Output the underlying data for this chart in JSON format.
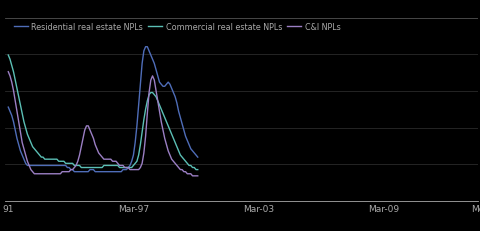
{
  "background_color": "#000000",
  "text_color": "#aaaaaa",
  "grid_color": "#2a2a2a",
  "legend_labels": [
    "Residential real estate NPLs",
    "Commercial real estate NPLs",
    "C&I NPLs"
  ],
  "line_colors": [
    "#4f6db8",
    "#5bbfb5",
    "#9b7fc4"
  ],
  "x_ticks": [
    "91",
    "Mar-97",
    "Mar-03",
    "Mar-09",
    "Me"
  ],
  "x_tick_positions": [
    0,
    72,
    144,
    216,
    270
  ],
  "series": {
    "residential": [
      0.45,
      0.43,
      0.41,
      0.38,
      0.34,
      0.3,
      0.27,
      0.24,
      0.22,
      0.2,
      0.18,
      0.17,
      0.17,
      0.17,
      0.17,
      0.17,
      0.17,
      0.17,
      0.17,
      0.17,
      0.17,
      0.17,
      0.17,
      0.17,
      0.17,
      0.17,
      0.17,
      0.17,
      0.17,
      0.17,
      0.17,
      0.17,
      0.17,
      0.17,
      0.16,
      0.16,
      0.15,
      0.15,
      0.14,
      0.14,
      0.14,
      0.14,
      0.14,
      0.14,
      0.14,
      0.14,
      0.14,
      0.15,
      0.15,
      0.15,
      0.14,
      0.14,
      0.14,
      0.14,
      0.14,
      0.14,
      0.14,
      0.14,
      0.14,
      0.14,
      0.14,
      0.14,
      0.14,
      0.14,
      0.14,
      0.14,
      0.15,
      0.15,
      0.15,
      0.16,
      0.17,
      0.19,
      0.22,
      0.28,
      0.36,
      0.46,
      0.56,
      0.66,
      0.72,
      0.74,
      0.74,
      0.72,
      0.7,
      0.68,
      0.66,
      0.63,
      0.6,
      0.57,
      0.56,
      0.55,
      0.55,
      0.56,
      0.57,
      0.56,
      0.54,
      0.52,
      0.5,
      0.47,
      0.43,
      0.4,
      0.37,
      0.34,
      0.31,
      0.29,
      0.27,
      0.25,
      0.24,
      0.23,
      0.22,
      0.21
    ],
    "commercial": [
      0.7,
      0.68,
      0.65,
      0.62,
      0.58,
      0.54,
      0.5,
      0.46,
      0.42,
      0.38,
      0.35,
      0.32,
      0.3,
      0.28,
      0.26,
      0.25,
      0.24,
      0.23,
      0.22,
      0.21,
      0.21,
      0.2,
      0.2,
      0.2,
      0.2,
      0.2,
      0.2,
      0.2,
      0.2,
      0.19,
      0.19,
      0.19,
      0.19,
      0.18,
      0.18,
      0.18,
      0.18,
      0.18,
      0.17,
      0.17,
      0.17,
      0.17,
      0.16,
      0.16,
      0.16,
      0.16,
      0.16,
      0.16,
      0.16,
      0.16,
      0.16,
      0.16,
      0.16,
      0.16,
      0.16,
      0.17,
      0.17,
      0.17,
      0.17,
      0.17,
      0.17,
      0.17,
      0.17,
      0.17,
      0.16,
      0.16,
      0.16,
      0.16,
      0.16,
      0.16,
      0.16,
      0.16,
      0.17,
      0.18,
      0.19,
      0.22,
      0.27,
      0.33,
      0.39,
      0.44,
      0.48,
      0.51,
      0.52,
      0.52,
      0.51,
      0.5,
      0.48,
      0.46,
      0.44,
      0.42,
      0.4,
      0.38,
      0.36,
      0.34,
      0.32,
      0.3,
      0.28,
      0.26,
      0.24,
      0.22,
      0.21,
      0.2,
      0.19,
      0.18,
      0.17,
      0.17,
      0.16,
      0.16,
      0.15,
      0.15
    ],
    "ci": [
      0.62,
      0.6,
      0.57,
      0.53,
      0.48,
      0.43,
      0.38,
      0.33,
      0.28,
      0.25,
      0.22,
      0.19,
      0.17,
      0.15,
      0.14,
      0.13,
      0.13,
      0.13,
      0.13,
      0.13,
      0.13,
      0.13,
      0.13,
      0.13,
      0.13,
      0.13,
      0.13,
      0.13,
      0.13,
      0.13,
      0.13,
      0.14,
      0.14,
      0.14,
      0.14,
      0.14,
      0.15,
      0.15,
      0.16,
      0.17,
      0.19,
      0.22,
      0.26,
      0.3,
      0.34,
      0.36,
      0.36,
      0.34,
      0.32,
      0.3,
      0.27,
      0.25,
      0.23,
      0.22,
      0.21,
      0.2,
      0.2,
      0.2,
      0.2,
      0.2,
      0.19,
      0.19,
      0.19,
      0.18,
      0.17,
      0.17,
      0.17,
      0.16,
      0.16,
      0.16,
      0.15,
      0.15,
      0.15,
      0.15,
      0.15,
      0.15,
      0.16,
      0.18,
      0.23,
      0.31,
      0.42,
      0.52,
      0.58,
      0.6,
      0.58,
      0.53,
      0.48,
      0.43,
      0.38,
      0.34,
      0.3,
      0.27,
      0.24,
      0.22,
      0.2,
      0.19,
      0.18,
      0.17,
      0.16,
      0.15,
      0.15,
      0.14,
      0.14,
      0.13,
      0.13,
      0.13,
      0.12,
      0.12,
      0.12,
      0.12
    ]
  },
  "n_points": 110,
  "figwidth": 4.8,
  "figheight": 2.32,
  "dpi": 100
}
